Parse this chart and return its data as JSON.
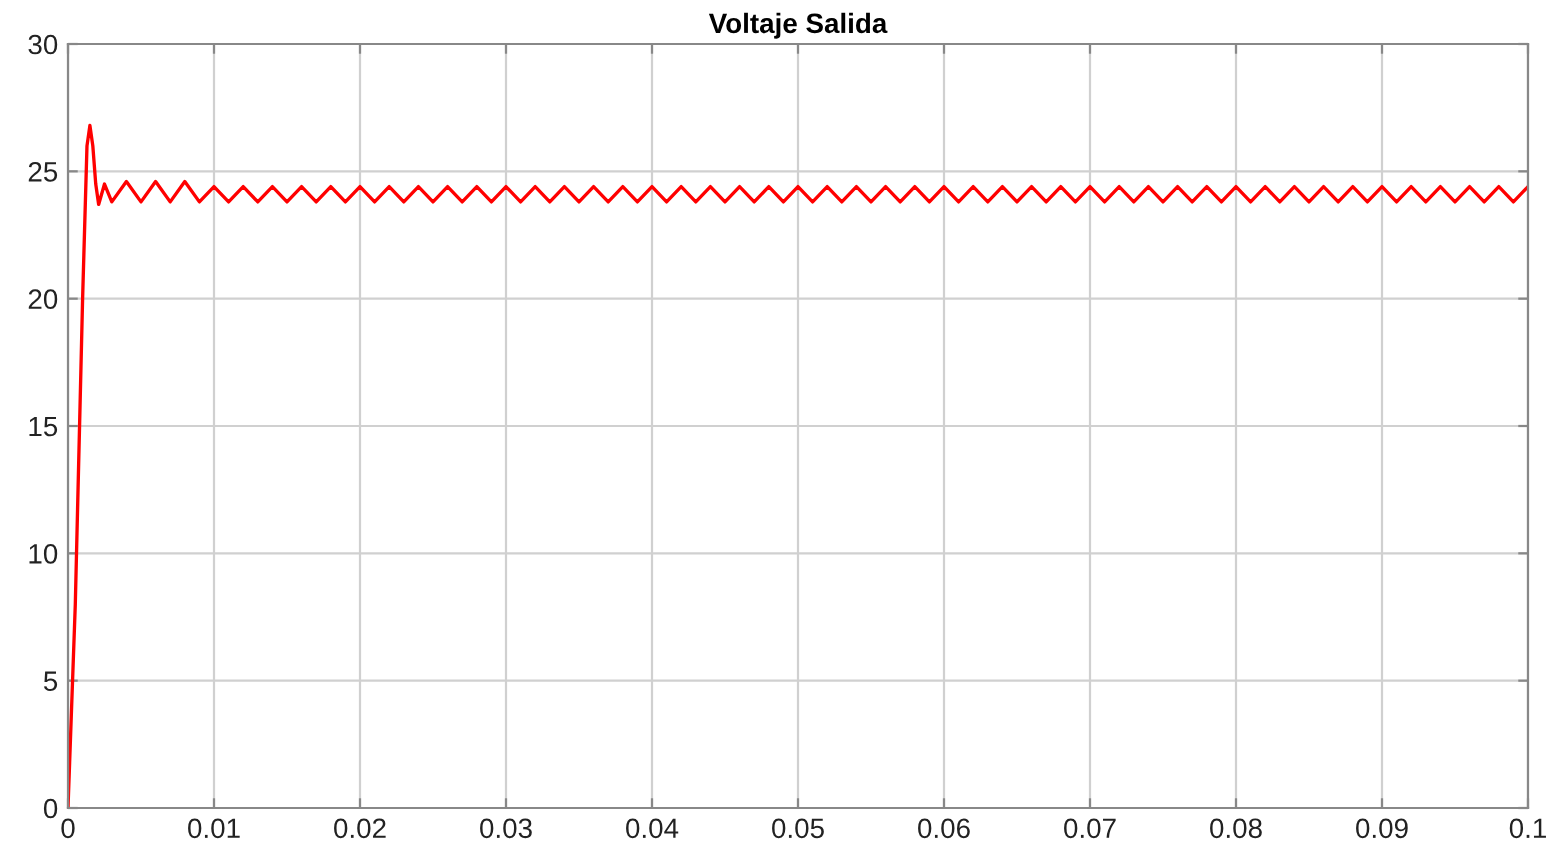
{
  "chart_data": {
    "type": "line",
    "title": "Voltaje Salida",
    "xlim": [
      0,
      0.1
    ],
    "ylim": [
      0,
      30
    ],
    "xticks": [
      0,
      0.01,
      0.02,
      0.03,
      0.04,
      0.05,
      0.06,
      0.07,
      0.08,
      0.09,
      0.1
    ],
    "yticks": [
      0,
      5,
      10,
      15,
      20,
      25,
      30
    ],
    "grid": true,
    "line_style": "solid",
    "marker": "none",
    "series": [
      {
        "color": "#ff0000",
        "x": [
          0,
          0.0005,
          0.001,
          0.0013,
          0.0015,
          0.0017,
          0.0019,
          0.0021,
          0.0025,
          0.003,
          0.004,
          0.005,
          0.006,
          0.007,
          0.008,
          0.009,
          0.01,
          0.011,
          0.012,
          0.013,
          0.014,
          0.015,
          0.016,
          0.017,
          0.018,
          0.019,
          0.02,
          0.021,
          0.022,
          0.023,
          0.024,
          0.025,
          0.026,
          0.027,
          0.028,
          0.029,
          0.03,
          0.031,
          0.032,
          0.033,
          0.034,
          0.035,
          0.036,
          0.037,
          0.038,
          0.039,
          0.04,
          0.041,
          0.042,
          0.043,
          0.044,
          0.045,
          0.046,
          0.047,
          0.048,
          0.049,
          0.05,
          0.051,
          0.052,
          0.053,
          0.054,
          0.055,
          0.056,
          0.057,
          0.058,
          0.059,
          0.06,
          0.061,
          0.062,
          0.063,
          0.064,
          0.065,
          0.066,
          0.067,
          0.068,
          0.069,
          0.07,
          0.071,
          0.072,
          0.073,
          0.074,
          0.075,
          0.076,
          0.077,
          0.078,
          0.079,
          0.08,
          0.081,
          0.082,
          0.083,
          0.084,
          0.085,
          0.086,
          0.087,
          0.088,
          0.089,
          0.09,
          0.091,
          0.092,
          0.093,
          0.094,
          0.095,
          0.096,
          0.097,
          0.098,
          0.099,
          0.1
        ],
        "values": [
          0,
          8,
          20,
          26,
          26.8,
          26,
          24.5,
          23.7,
          24.5,
          23.8,
          24.6,
          23.8,
          24.6,
          23.8,
          24.6,
          23.8,
          24.4,
          23.8,
          24.4,
          23.8,
          24.4,
          23.8,
          24.4,
          23.8,
          24.4,
          23.8,
          24.4,
          23.8,
          24.4,
          23.8,
          24.4,
          23.8,
          24.4,
          23.8,
          24.4,
          23.8,
          24.4,
          23.8,
          24.4,
          23.8,
          24.4,
          23.8,
          24.4,
          23.8,
          24.4,
          23.8,
          24.4,
          23.8,
          24.4,
          23.8,
          24.4,
          23.8,
          24.4,
          23.8,
          24.4,
          23.8,
          24.4,
          23.8,
          24.4,
          23.8,
          24.4,
          23.8,
          24.4,
          23.8,
          24.4,
          23.8,
          24.4,
          23.8,
          24.4,
          23.8,
          24.4,
          23.8,
          24.4,
          23.8,
          24.4,
          23.8,
          24.4,
          23.8,
          24.4,
          23.8,
          24.4,
          23.8,
          24.4,
          23.8,
          24.4,
          23.8,
          24.4,
          23.8,
          24.4,
          23.8,
          24.4,
          23.8,
          24.4,
          23.8,
          24.4,
          23.8,
          24.4,
          23.8,
          24.4,
          23.8,
          24.4,
          23.8,
          24.4,
          23.8,
          24.4,
          23.8,
          24.4
        ]
      }
    ]
  }
}
